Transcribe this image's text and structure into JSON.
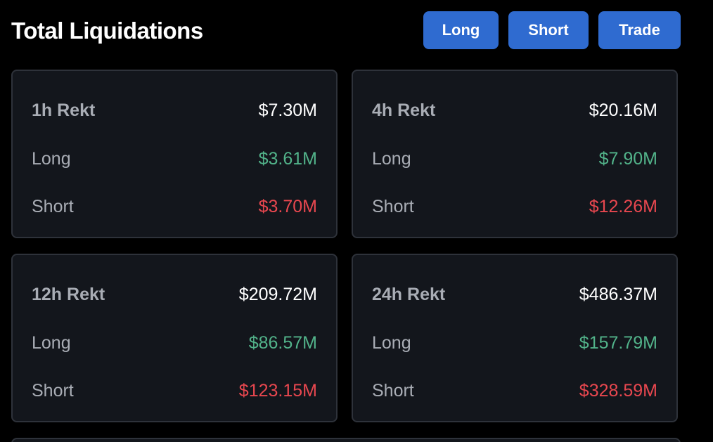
{
  "header": {
    "title": "Total Liquidations",
    "buttons": {
      "long": "Long",
      "short": "Short",
      "trade": "Trade"
    }
  },
  "colors": {
    "background": "#000000",
    "card_background": "#13161c",
    "button": "#2f6bd0",
    "long": "#52b38a",
    "short": "#e8474f"
  },
  "cards": [
    {
      "title": "1h Rekt",
      "total": "$7.30M",
      "long_label": "Long",
      "long": "$3.61M",
      "short_label": "Short",
      "short": "$3.70M"
    },
    {
      "title": "4h Rekt",
      "total": "$20.16M",
      "long_label": "Long",
      "long": "$7.90M",
      "short_label": "Short",
      "short": "$12.26M"
    },
    {
      "title": "12h Rekt",
      "total": "$209.72M",
      "long_label": "Long",
      "long": "$86.57M",
      "short_label": "Short",
      "short": "$123.15M"
    },
    {
      "title": "24h Rekt",
      "total": "$486.37M",
      "long_label": "Long",
      "long": "$157.79M",
      "short_label": "Short",
      "short": "$328.59M"
    }
  ]
}
